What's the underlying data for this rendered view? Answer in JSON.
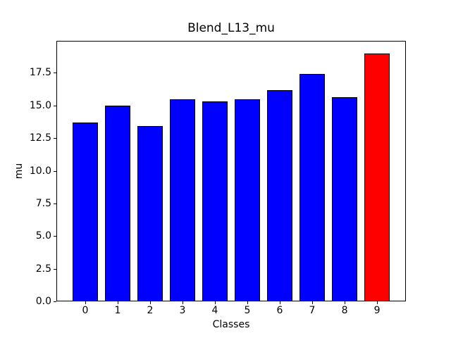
{
  "figure": {
    "background": "#ffffff",
    "text_color": "#000000"
  },
  "chart_data": {
    "type": "bar",
    "title": "Blend_L13_mu",
    "xlabel": "Classes",
    "ylabel": "mu",
    "categories": [
      "0",
      "1",
      "2",
      "3",
      "4",
      "5",
      "6",
      "7",
      "8",
      "9"
    ],
    "values": [
      13.67,
      15.0,
      13.4,
      15.5,
      15.3,
      15.45,
      16.18,
      17.4,
      15.65,
      19.0
    ],
    "bar_colors": [
      "#0000ff",
      "#0000ff",
      "#0000ff",
      "#0000ff",
      "#0000ff",
      "#0000ff",
      "#0000ff",
      "#0000ff",
      "#0000ff",
      "#ff0000"
    ],
    "edge_color": "#000000",
    "bar_width": 0.8,
    "xlim": [
      -0.89,
      9.89
    ],
    "ylim": [
      0,
      19.95
    ],
    "ytick_values": [
      0,
      2.5,
      5,
      7.5,
      10,
      12.5,
      15,
      17.5
    ],
    "ytick_labels": [
      "0.0",
      "2.5",
      "5.0",
      "7.5",
      "10.0",
      "12.5",
      "15.0",
      "17.5"
    ],
    "grid": false,
    "legend": null
  }
}
